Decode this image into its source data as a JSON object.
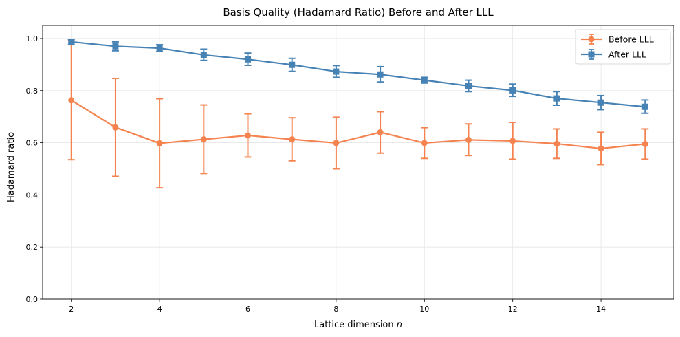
{
  "chart_data": {
    "type": "line",
    "title": "Basis Quality (Hadamard Ratio) Before and After LLL",
    "xlabel": "Lattice dimension",
    "xlabel_var": "n",
    "ylabel": "Hadamard ratio",
    "xlim": [
      1.35,
      15.65
    ],
    "ylim": [
      0.0,
      1.05
    ],
    "xticks": [
      2,
      4,
      6,
      8,
      10,
      12,
      14
    ],
    "xtick_labels": [
      "2",
      "4",
      "6",
      "8",
      "10",
      "12",
      "14"
    ],
    "yticks": [
      0.0,
      0.2,
      0.4,
      0.6,
      0.8,
      1.0
    ],
    "ytick_labels": [
      "0.0",
      "0.2",
      "0.4",
      "0.6",
      "0.8",
      "1.0"
    ],
    "grid": true,
    "legend_position": "top-right",
    "x": [
      2,
      3,
      4,
      5,
      6,
      7,
      8,
      9,
      10,
      11,
      12,
      13,
      14,
      15
    ],
    "series": [
      {
        "name": "Before LLL",
        "color": "#f4834f",
        "marker": "circle",
        "values": [
          0.763,
          0.659,
          0.598,
          0.613,
          0.628,
          0.613,
          0.599,
          0.64,
          0.599,
          0.611,
          0.607,
          0.596,
          0.578,
          0.595
        ],
        "err_low": [
          0.535,
          0.471,
          0.427,
          0.482,
          0.545,
          0.531,
          0.5,
          0.56,
          0.54,
          0.551,
          0.537,
          0.54,
          0.516,
          0.537
        ],
        "err_high": [
          0.995,
          0.847,
          0.769,
          0.745,
          0.711,
          0.696,
          0.698,
          0.719,
          0.658,
          0.672,
          0.678,
          0.653,
          0.64,
          0.653
        ]
      },
      {
        "name": "After LLL",
        "color": "#4682b4",
        "marker": "square",
        "values": [
          0.987,
          0.97,
          0.963,
          0.937,
          0.92,
          0.899,
          0.873,
          0.862,
          0.84,
          0.818,
          0.801,
          0.77,
          0.754,
          0.738
        ],
        "err_low": [
          0.977,
          0.953,
          0.95,
          0.916,
          0.897,
          0.874,
          0.851,
          0.833,
          0.829,
          0.796,
          0.778,
          0.744,
          0.727,
          0.713
        ],
        "err_high": [
          0.997,
          0.987,
          0.976,
          0.959,
          0.944,
          0.924,
          0.896,
          0.892,
          0.851,
          0.84,
          0.825,
          0.796,
          0.781,
          0.764
        ]
      }
    ]
  }
}
